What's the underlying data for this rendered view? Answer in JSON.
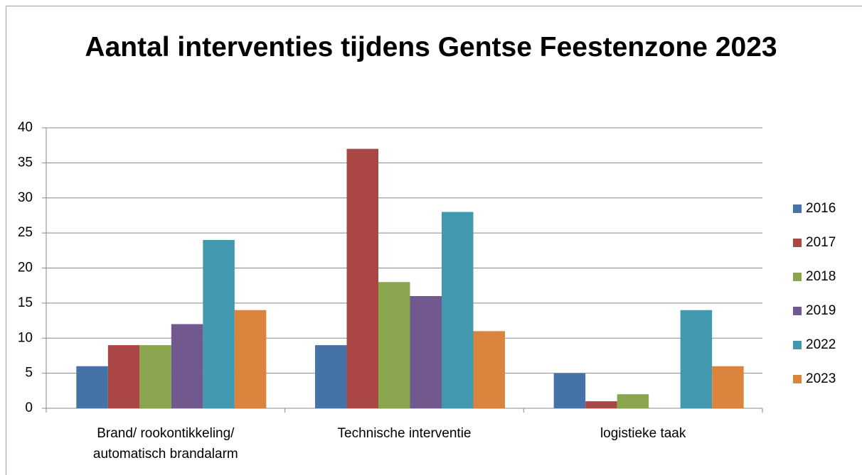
{
  "chart_data": {
    "type": "bar",
    "title": "Aantal interventies tijdens Gentse Feestenzone 2023",
    "categories": [
      "Brand/ rookontikkeling/ automatisch brandalarm",
      "Technische interventie",
      "logistieke taak"
    ],
    "series": [
      {
        "name": "2016",
        "color": "#4572a7",
        "values": [
          6,
          9,
          5
        ]
      },
      {
        "name": "2017",
        "color": "#aa4643",
        "values": [
          9,
          37,
          1
        ]
      },
      {
        "name": "2018",
        "color": "#89a54e",
        "values": [
          9,
          18,
          2
        ]
      },
      {
        "name": "2019",
        "color": "#71588f",
        "values": [
          12,
          16,
          0
        ]
      },
      {
        "name": "2022",
        "color": "#4198af",
        "values": [
          24,
          28,
          14
        ]
      },
      {
        "name": "2023",
        "color": "#db843d",
        "values": [
          14,
          11,
          6
        ]
      }
    ],
    "ylim": [
      0,
      40
    ],
    "yticks": [
      0,
      5,
      10,
      15,
      20,
      25,
      30,
      35,
      40
    ],
    "grid": true,
    "legend": "right"
  }
}
